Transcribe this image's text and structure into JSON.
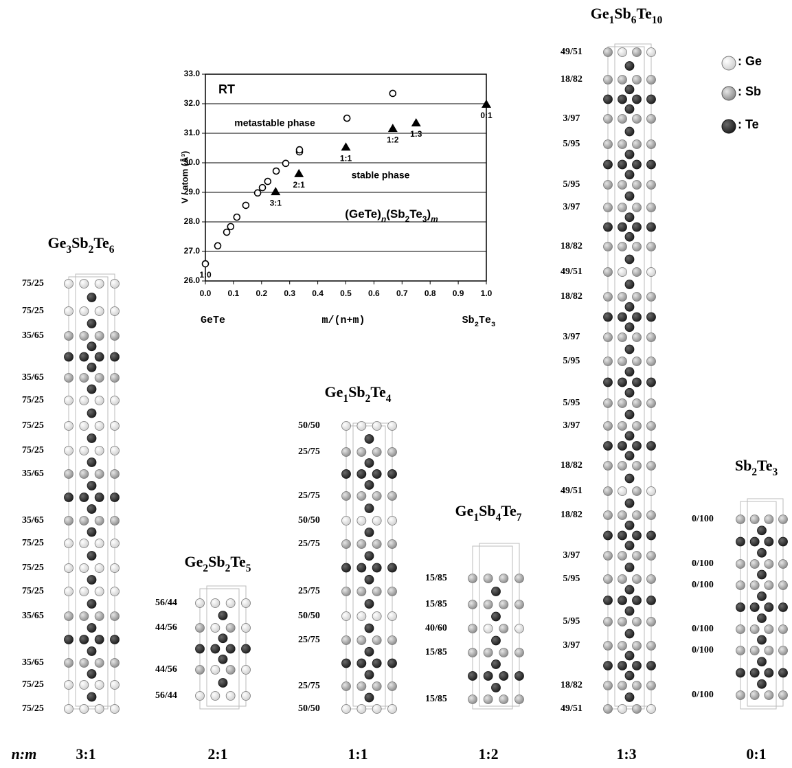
{
  "chart_data": {
    "type": "scatter",
    "xlim": [
      0,
      1
    ],
    "ylim": [
      26,
      33
    ],
    "xticks": [
      {
        "value": 0,
        "label": "0.0"
      },
      {
        "value": 0.1,
        "label": "0.1"
      },
      {
        "value": 0.2,
        "label": "0.2"
      },
      {
        "value": 0.3,
        "label": "0.3"
      },
      {
        "value": 0.4,
        "label": "0.4"
      },
      {
        "value": 0.5,
        "label": "0.5"
      },
      {
        "value": 0.6,
        "label": "0.6"
      },
      {
        "value": 0.7,
        "label": "0.7"
      },
      {
        "value": 0.8,
        "label": "0.8"
      },
      {
        "value": 0.9,
        "label": "0.9"
      },
      {
        "value": 1,
        "label": "1.0"
      }
    ],
    "yticks": [
      {
        "value": 26,
        "label": "26.0"
      },
      {
        "value": 27,
        "label": "27.0"
      },
      {
        "value": 28,
        "label": "28.0"
      },
      {
        "value": 29,
        "label": "29.0"
      },
      {
        "value": 30,
        "label": "30.0"
      },
      {
        "value": 31,
        "label": "31.0"
      },
      {
        "value": 32,
        "label": "32.0"
      },
      {
        "value": 33,
        "label": "33.0"
      }
    ],
    "grid": true,
    "x_label": "m/(n+m)",
    "y_label": "V / atom (Å³)",
    "x_start_label": "GeTe",
    "x_end_label": "Sb2Te3",
    "annotations": [
      "RT",
      "metastable phase",
      "stable phase",
      "(GeTe)n(Sb2Te3)m"
    ],
    "series": [
      {
        "marker": "circle-open",
        "color": "#000000",
        "x": [
          0,
          0.044,
          0.076,
          0.09,
          0.112,
          0.144,
          0.186,
          0.203,
          0.222,
          0.252,
          0.286,
          0.335,
          0.335,
          0.504,
          0.667
        ],
        "values": [
          26.58,
          27.19,
          27.65,
          27.84,
          28.16,
          28.56,
          28.98,
          29.16,
          29.37,
          29.72,
          29.98,
          30.37,
          30.44,
          31.51,
          32.35
        ],
        "point_labels": [
          "1:0",
          null,
          null,
          null,
          null,
          null,
          null,
          null,
          null,
          null,
          null,
          null,
          null,
          null,
          null
        ]
      },
      {
        "marker": "triangle",
        "color": "#000000",
        "x": [
          0.25,
          0.333,
          0.5,
          0.667,
          0.75,
          1
        ],
        "values": [
          29.02,
          29.63,
          30.53,
          31.16,
          31.35,
          31.98
        ],
        "point_labels": [
          "3:1",
          "2:1",
          "1:1",
          "1:2",
          "1:3",
          "0:1"
        ]
      }
    ]
  },
  "ratio_header": "n:m",
  "legend": [
    ": Ge",
    ": Sb",
    ": Te"
  ],
  "structures": [
    {
      "name": "Ge3Sb2Te6",
      "ratio": "3:1",
      "layers": [
        "75/25",
        "75/25",
        "35/65",
        "35/65",
        "75/25",
        "75/25",
        "75/25",
        "35/65",
        "35/65",
        "75/25",
        "75/25",
        "75/25",
        "35/65",
        "35/65",
        "75/25",
        "75/25"
      ]
    },
    {
      "name": "Ge2Sb2Te5",
      "ratio": "2:1",
      "layers": [
        "56/44",
        "44/56",
        "44/56",
        "56/44"
      ]
    },
    {
      "name": "Ge1Sb2Te4",
      "ratio": "1:1",
      "layers": [
        "50/50",
        "25/75",
        "25/75",
        "50/50",
        "25/75",
        "25/75",
        "50/50",
        "25/75",
        "25/75",
        "50/50"
      ]
    },
    {
      "name": "Ge1Sb4Te7",
      "ratio": "1:2",
      "layers": [
        "15/85",
        "15/85",
        "40/60",
        "15/85",
        "15/85"
      ]
    },
    {
      "name": "Ge1Sb6Te10",
      "ratio": "1:3",
      "layers": [
        "49/51",
        "18/82",
        "3/97",
        "5/95",
        "5/95",
        "3/97",
        "18/82",
        "49/51",
        "18/82",
        "3/97",
        "5/95",
        "5/95",
        "3/97",
        "18/82",
        "49/51",
        "18/82",
        "3/97",
        "5/95",
        "5/95",
        "3/97",
        "18/82",
        "49/51"
      ]
    },
    {
      "name": "Sb2Te3",
      "ratio": "0:1",
      "layers": [
        "0/100",
        "0/100",
        "0/100",
        "0/100",
        "0/100",
        "0/100"
      ]
    }
  ]
}
